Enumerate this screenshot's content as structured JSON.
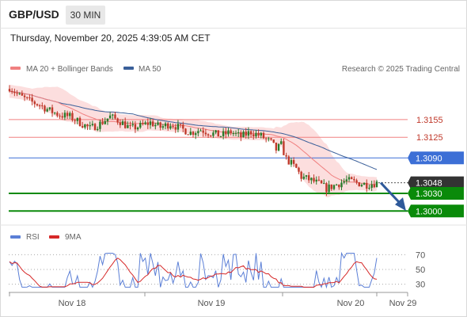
{
  "header": {
    "symbol": "GBP/USD",
    "timeframe": "30 MIN"
  },
  "timestamp": "Thursday, November 20, 2025 4:39:05 AM CET",
  "credit": "Research © 2025 Trading Central",
  "colors": {
    "ma20": "#f08080",
    "ma50": "#3a5f99",
    "band": "#fbd3d3",
    "resistance": "#f08080",
    "pivot": "#3c6fd6",
    "support": "#0a8a0a",
    "price": "#333333",
    "up": "#2a7a2a",
    "down": "#c0392b",
    "rsi": "#5b7fd6",
    "rsi_ma": "#d62828",
    "arrow": "#2f5a9a"
  },
  "chart_data": [
    {
      "type": "candlestick",
      "legend": [
        "MA 20 + Bollinger Bands",
        "MA 50"
      ],
      "x_ticks": [
        "Nov 18",
        "Nov 19",
        "Nov 20",
        "Nov 29"
      ],
      "ylim": [
        1.2991,
        1.3218
      ],
      "levels": [
        {
          "label": "1.3155",
          "value": 1.3155,
          "kind": "resistance"
        },
        {
          "label": "1.3125",
          "value": 1.3125,
          "kind": "resistance"
        },
        {
          "label": "1.3090",
          "value": 1.309,
          "kind": "pivot"
        },
        {
          "label": "1.3048",
          "value": 1.3048,
          "kind": "price"
        },
        {
          "label": "1.3030",
          "value": 1.303,
          "kind": "support"
        },
        {
          "label": "1.3000",
          "value": 1.3,
          "kind": "support"
        }
      ],
      "anchors": [
        [
          0,
          1.321
        ],
        [
          4,
          1.3195
        ],
        [
          8,
          1.3186
        ],
        [
          12,
          1.318
        ],
        [
          16,
          1.317
        ],
        [
          20,
          1.3163
        ],
        [
          24,
          1.316
        ],
        [
          28,
          1.315
        ],
        [
          32,
          1.314
        ],
        [
          36,
          1.3148
        ],
        [
          40,
          1.316
        ],
        [
          44,
          1.3152
        ],
        [
          48,
          1.314
        ],
        [
          52,
          1.3144
        ],
        [
          56,
          1.315
        ],
        [
          60,
          1.3142
        ],
        [
          64,
          1.3148
        ],
        [
          68,
          1.314
        ],
        [
          72,
          1.3133
        ],
        [
          76,
          1.3138
        ],
        [
          80,
          1.3132
        ],
        [
          84,
          1.3128
        ],
        [
          88,
          1.3134
        ],
        [
          92,
          1.3126
        ],
        [
          96,
          1.3134
        ],
        [
          100,
          1.3127
        ],
        [
          104,
          1.3116
        ],
        [
          106,
          1.3104
        ],
        [
          108,
          1.3112
        ],
        [
          110,
          1.3088
        ],
        [
          114,
          1.3072
        ],
        [
          116,
          1.3058
        ],
        [
          120,
          1.3052
        ],
        [
          124,
          1.3044
        ],
        [
          126,
          1.3038
        ],
        [
          130,
          1.3045
        ],
        [
          134,
          1.3052
        ],
        [
          138,
          1.3048
        ],
        [
          142,
          1.3045
        ],
        [
          146,
          1.3048
        ]
      ],
      "n_bars": 147
    },
    {
      "type": "line",
      "legend": [
        "RSI",
        "9MA"
      ],
      "y_ticks": [
        70,
        50,
        30
      ],
      "ylim": [
        20,
        80
      ]
    }
  ]
}
